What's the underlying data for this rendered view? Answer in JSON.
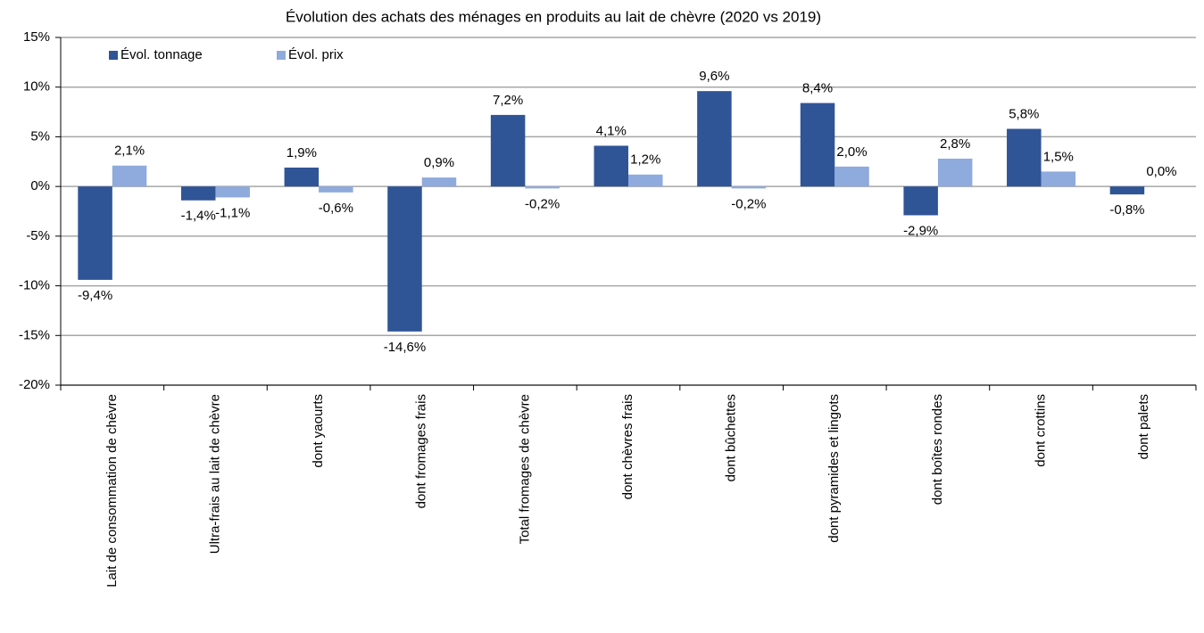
{
  "chart_data": {
    "type": "bar",
    "title": "Évolution des achats des ménages en produits au lait de chèvre (2020 vs 2019)",
    "categories": [
      "Lait de consommation de chèvre",
      "Ultra-frais au lait de chèvre",
      "dont yaourts",
      "dont fromages frais",
      "Total fromages de chèvre",
      "dont chèvres frais",
      "dont bûchettes",
      "dont pyramides et lingots",
      "dont boîtes rondes",
      "dont crottins",
      "dont palets"
    ],
    "series": [
      {
        "name": "Évol. tonnage",
        "color": "#2f5597",
        "values": [
          -9.4,
          -1.4,
          1.9,
          -14.6,
          7.2,
          4.1,
          9.6,
          8.4,
          -2.9,
          5.8,
          -0.8
        ],
        "value_labels": [
          "-9,4%",
          "-1,4%",
          "1,9%",
          "-14,6%",
          "7,2%",
          "4,1%",
          "9,6%",
          "8,4%",
          "-2,9%",
          "5,8%",
          "-0,8%"
        ]
      },
      {
        "name": "Évol. prix",
        "color": "#8faadc",
        "values": [
          2.1,
          -1.1,
          -0.6,
          0.9,
          -0.2,
          1.2,
          -0.2,
          2.0,
          2.8,
          1.5,
          0.0
        ],
        "value_labels": [
          "2,1%",
          "-1,1%",
          "-0,6%",
          "0,9%",
          "-0,2%",
          "1,2%",
          "-0,2%",
          "2,0%",
          "2,8%",
          "1,5%",
          "0,0%"
        ]
      }
    ],
    "ylim": [
      -20,
      15
    ],
    "yticks": [
      {
        "value": -20,
        "label": "-20%"
      },
      {
        "value": -15,
        "label": "-15%"
      },
      {
        "value": -10,
        "label": "-10%"
      },
      {
        "value": -5,
        "label": "-5%"
      },
      {
        "value": 0,
        "label": "0%"
      },
      {
        "value": 5,
        "label": "5%"
      },
      {
        "value": 10,
        "label": "10%"
      },
      {
        "value": 15,
        "label": "15%"
      }
    ],
    "grid": true,
    "legend": "top-left"
  }
}
